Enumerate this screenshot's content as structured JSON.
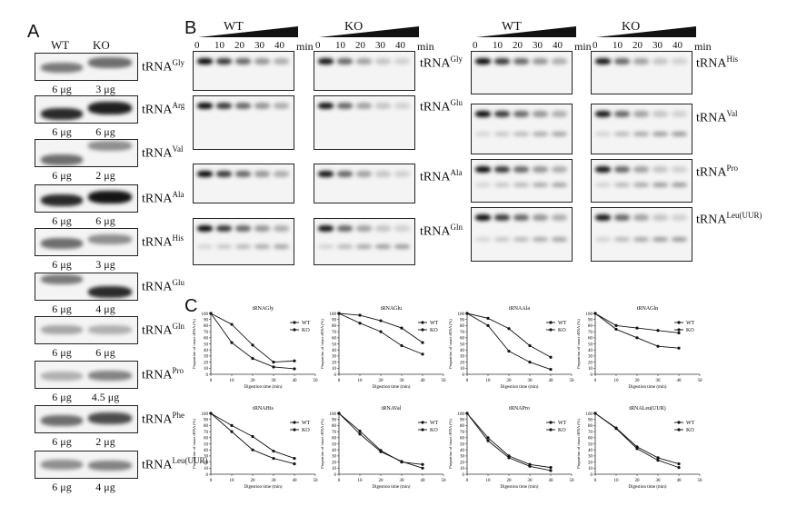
{
  "panelA": {
    "letter": "A",
    "col_wt": "WT",
    "col_ko": "KO",
    "rows": [
      {
        "base": "tRNA",
        "sup": "Gly",
        "wt_amt": "6 μg",
        "ko_amt": "3 μg"
      },
      {
        "base": "tRNA",
        "sup": "Arg",
        "wt_amt": "6 μg",
        "ko_amt": "6 μg"
      },
      {
        "base": "tRNA",
        "sup": "Val",
        "wt_amt": "6 μg",
        "ko_amt": "2 μg"
      },
      {
        "base": "tRNA",
        "sup": "Ala",
        "wt_amt": "6 μg",
        "ko_amt": "6 μg"
      },
      {
        "base": "tRNA",
        "sup": "His",
        "wt_amt": "6 μg",
        "ko_amt": "3 μg"
      },
      {
        "base": "tRNA",
        "sup": "Glu",
        "wt_amt": "6 μg",
        "ko_amt": "4 μg"
      },
      {
        "base": "tRNA",
        "sup": "Gln",
        "wt_amt": "6 μg",
        "ko_amt": "6 μg"
      },
      {
        "base": "tRNA",
        "sup": "Pro",
        "wt_amt": "6 μg",
        "ko_amt": "4.5 μg"
      },
      {
        "base": "tRNA",
        "sup": "Phe",
        "wt_amt": "6 μg",
        "ko_amt": "2 μg"
      },
      {
        "base": "tRNA",
        "sup": "Leu(UUR)",
        "wt_amt": "6 μg",
        "ko_amt": "4 μg"
      }
    ]
  },
  "panelB": {
    "letter": "B",
    "group_labels": [
      "WT",
      "KO",
      "WT",
      "KO"
    ],
    "times": [
      "0",
      "10",
      "20",
      "30",
      "40"
    ],
    "unit": "min",
    "left_labels": [
      {
        "base": "tRNA",
        "sup": "Gly"
      },
      {
        "base": "tRNA",
        "sup": "Glu"
      },
      {
        "base": "tRNA",
        "sup": "Ala"
      },
      {
        "base": "tRNA",
        "sup": "Gln"
      }
    ],
    "right_labels": [
      {
        "base": "tRNA",
        "sup": "His"
      },
      {
        "base": "tRNA",
        "sup": "Val"
      },
      {
        "base": "tRNA",
        "sup": "Pro"
      },
      {
        "base": "tRNA",
        "sup": "Leu(UUR)"
      }
    ]
  },
  "panelC": {
    "letter": "C"
  },
  "chart_data": [
    {
      "type": "line",
      "title": "tRNAGly",
      "xlabel": "Digestion time (min)",
      "ylabel": "Proportion of intact tRNA (%)",
      "xlim": [
        0,
        50
      ],
      "ylim": [
        0,
        100
      ],
      "xticks": [
        0,
        10,
        20,
        30,
        40,
        50
      ],
      "yticks": [
        0,
        10,
        20,
        30,
        40,
        50,
        60,
        70,
        80,
        90,
        100
      ],
      "x": [
        0,
        10,
        20,
        30,
        40
      ],
      "series": [
        {
          "name": "WT",
          "values": [
            100,
            82,
            48,
            20,
            22
          ]
        },
        {
          "name": "KO",
          "values": [
            100,
            52,
            26,
            12,
            9
          ]
        }
      ],
      "legend": "right"
    },
    {
      "type": "line",
      "title": "tRNAGlu",
      "xlabel": "Digestion time (min)",
      "ylabel": "Proportion of intact tRNA (%)",
      "xlim": [
        0,
        50
      ],
      "ylim": [
        0,
        100
      ],
      "xticks": [
        0,
        10,
        20,
        30,
        40,
        50
      ],
      "yticks": [
        0,
        10,
        20,
        30,
        40,
        50,
        60,
        70,
        80,
        90,
        100
      ],
      "x": [
        0,
        10,
        20,
        30,
        40
      ],
      "series": [
        {
          "name": "WT",
          "values": [
            100,
            97,
            88,
            76,
            52
          ]
        },
        {
          "name": "KO",
          "values": [
            100,
            84,
            70,
            47,
            33
          ]
        }
      ],
      "legend": "right"
    },
    {
      "type": "line",
      "title": "tRNAAla",
      "xlabel": "Digestion time (min)",
      "ylabel": "Proportion of intact tRNA (%)",
      "xlim": [
        0,
        50
      ],
      "ylim": [
        0,
        100
      ],
      "xticks": [
        0,
        10,
        20,
        30,
        40,
        50
      ],
      "yticks": [
        0,
        10,
        20,
        30,
        40,
        50,
        60,
        70,
        80,
        90,
        100
      ],
      "x": [
        0,
        10,
        20,
        30,
        40
      ],
      "series": [
        {
          "name": "WT",
          "values": [
            100,
            92,
            75,
            47,
            28
          ]
        },
        {
          "name": "KO",
          "values": [
            100,
            80,
            38,
            20,
            8
          ]
        }
      ],
      "legend": "right"
    },
    {
      "type": "line",
      "title": "tRNAGln",
      "xlabel": "Digestion time (min)",
      "ylabel": "Proportion of intact tRNA (%)",
      "xlim": [
        0,
        50
      ],
      "ylim": [
        0,
        100
      ],
      "xticks": [
        0,
        10,
        20,
        30,
        40,
        50
      ],
      "yticks": [
        0,
        10,
        20,
        30,
        40,
        50,
        60,
        70,
        80,
        90,
        100
      ],
      "x": [
        0,
        10,
        20,
        30,
        40
      ],
      "series": [
        {
          "name": "WT",
          "values": [
            100,
            80,
            76,
            72,
            68
          ]
        },
        {
          "name": "KO",
          "values": [
            100,
            74,
            60,
            46,
            43
          ]
        }
      ],
      "legend": "right"
    },
    {
      "type": "line",
      "title": "tRNAHis",
      "xlabel": "Digestion time (min)",
      "ylabel": "Proportion of intact tRNA (%)",
      "xlim": [
        0,
        50
      ],
      "ylim": [
        0,
        100
      ],
      "xticks": [
        0,
        10,
        20,
        30,
        40,
        50
      ],
      "yticks": [
        0,
        10,
        20,
        30,
        40,
        50,
        60,
        70,
        80,
        90,
        100
      ],
      "x": [
        0,
        10,
        20,
        30,
        40
      ],
      "series": [
        {
          "name": "WT",
          "values": [
            100,
            80,
            62,
            38,
            26
          ]
        },
        {
          "name": "KO",
          "values": [
            100,
            70,
            40,
            26,
            17
          ]
        }
      ],
      "legend": "right"
    },
    {
      "type": "line",
      "title": "tRNAVal",
      "xlabel": "Digestion time (min)",
      "ylabel": "Proportion of intact tRNA (%)",
      "xlim": [
        0,
        50
      ],
      "ylim": [
        0,
        100
      ],
      "xticks": [
        0,
        10,
        20,
        30,
        40,
        50
      ],
      "yticks": [
        0,
        10,
        20,
        30,
        40,
        50,
        60,
        70,
        80,
        90,
        100
      ],
      "x": [
        0,
        10,
        20,
        30,
        40
      ],
      "series": [
        {
          "name": "WT",
          "values": [
            100,
            71,
            39,
            20,
            16
          ]
        },
        {
          "name": "KO",
          "values": [
            100,
            66,
            37,
            21,
            10
          ]
        }
      ],
      "legend": "right"
    },
    {
      "type": "line",
      "title": "tRNAPro",
      "xlabel": "Digestion time (min)",
      "ylabel": "Proportion of intact tRNA (%)",
      "xlim": [
        0,
        50
      ],
      "ylim": [
        0,
        100
      ],
      "xticks": [
        0,
        10,
        20,
        30,
        40,
        50
      ],
      "yticks": [
        0,
        10,
        20,
        30,
        40,
        50,
        60,
        70,
        80,
        90,
        100
      ],
      "x": [
        0,
        10,
        20,
        30,
        40
      ],
      "series": [
        {
          "name": "WT",
          "values": [
            100,
            60,
            30,
            16,
            11
          ]
        },
        {
          "name": "KO",
          "values": [
            100,
            55,
            27,
            13,
            6
          ]
        }
      ],
      "legend": "right"
    },
    {
      "type": "line",
      "title": "tRNALeu(UUR)",
      "xlabel": "Digestion time (min)",
      "ylabel": "Proportion of intact tRNA (%)",
      "xlim": [
        0,
        50
      ],
      "ylim": [
        0,
        100
      ],
      "xticks": [
        0,
        10,
        20,
        30,
        40,
        50
      ],
      "yticks": [
        0,
        10,
        20,
        30,
        40,
        50,
        60,
        70,
        80,
        90,
        100
      ],
      "x": [
        0,
        10,
        20,
        30,
        40
      ],
      "series": [
        {
          "name": "WT",
          "values": [
            100,
            76,
            45,
            27,
            17
          ]
        },
        {
          "name": "KO",
          "values": [
            100,
            75,
            42,
            23,
            11
          ]
        }
      ],
      "legend": "right"
    }
  ]
}
